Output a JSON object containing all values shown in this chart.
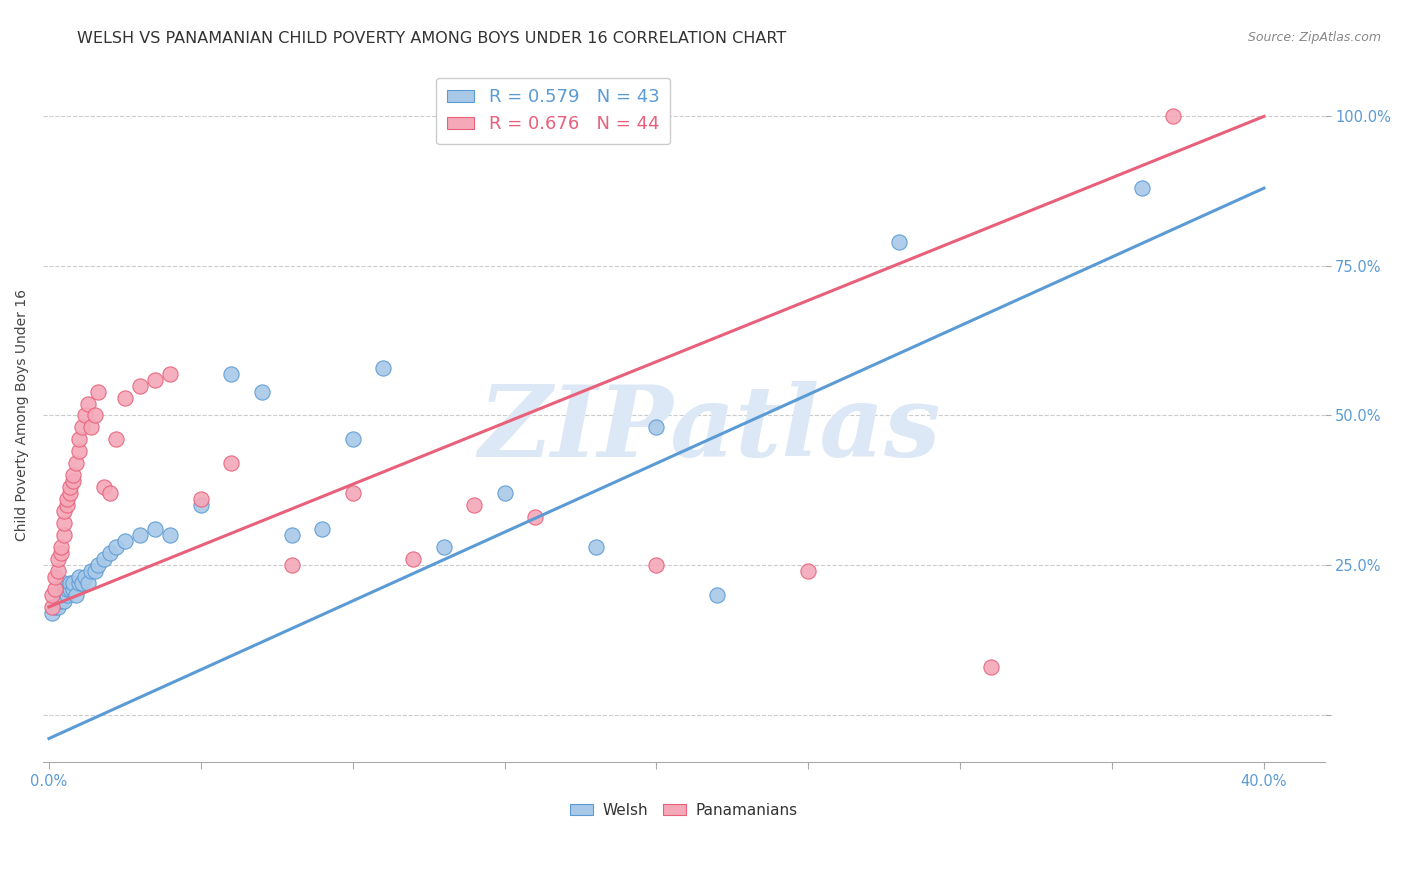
{
  "title": "WELSH VS PANAMANIAN CHILD POVERTY AMONG BOYS UNDER 16 CORRELATION CHART",
  "source": "Source: ZipAtlas.com",
  "ylabel": "Child Poverty Among Boys Under 16",
  "xlim": [
    -0.002,
    0.42
  ],
  "ylim": [
    -0.08,
    1.08
  ],
  "xticks": [
    0.0,
    0.05,
    0.1,
    0.15,
    0.2,
    0.25,
    0.3,
    0.35,
    0.4
  ],
  "yticks": [
    0.0,
    0.25,
    0.5,
    0.75,
    1.0
  ],
  "yticklabels": [
    "",
    "25.0%",
    "50.0%",
    "75.0%",
    "100.0%"
  ],
  "welsh_R": 0.579,
  "welsh_N": 43,
  "panam_R": 0.676,
  "panam_N": 44,
  "welsh_color": "#a8c8e8",
  "panam_color": "#f4a8b8",
  "welsh_edge_color": "#5b9bd5",
  "panam_edge_color": "#e8607a",
  "welsh_line_color": "#5b9bd5",
  "panam_line_color": "#e8607a",
  "watermark_color": "#dce8f5",
  "background_color": "#ffffff",
  "welsh_x": [
    0.001,
    0.002,
    0.003,
    0.004,
    0.004,
    0.005,
    0.005,
    0.006,
    0.006,
    0.007,
    0.007,
    0.008,
    0.008,
    0.009,
    0.01,
    0.01,
    0.011,
    0.012,
    0.013,
    0.014,
    0.015,
    0.016,
    0.018,
    0.02,
    0.022,
    0.025,
    0.03,
    0.035,
    0.04,
    0.05,
    0.06,
    0.07,
    0.08,
    0.09,
    0.1,
    0.11,
    0.13,
    0.15,
    0.18,
    0.2,
    0.22,
    0.28,
    0.36
  ],
  "welsh_y": [
    0.17,
    0.18,
    0.18,
    0.19,
    0.2,
    0.19,
    0.22,
    0.2,
    0.21,
    0.21,
    0.22,
    0.21,
    0.22,
    0.2,
    0.22,
    0.23,
    0.22,
    0.23,
    0.22,
    0.24,
    0.24,
    0.25,
    0.26,
    0.27,
    0.28,
    0.29,
    0.3,
    0.31,
    0.3,
    0.35,
    0.57,
    0.54,
    0.3,
    0.31,
    0.46,
    0.58,
    0.28,
    0.37,
    0.28,
    0.48,
    0.2,
    0.79,
    0.88
  ],
  "panam_x": [
    0.001,
    0.001,
    0.002,
    0.002,
    0.003,
    0.003,
    0.004,
    0.004,
    0.005,
    0.005,
    0.005,
    0.006,
    0.006,
    0.007,
    0.007,
    0.008,
    0.008,
    0.009,
    0.01,
    0.01,
    0.011,
    0.012,
    0.013,
    0.014,
    0.015,
    0.016,
    0.018,
    0.02,
    0.022,
    0.025,
    0.03,
    0.035,
    0.04,
    0.05,
    0.06,
    0.08,
    0.1,
    0.12,
    0.14,
    0.16,
    0.2,
    0.25,
    0.31,
    0.37
  ],
  "panam_y": [
    0.18,
    0.2,
    0.21,
    0.23,
    0.24,
    0.26,
    0.27,
    0.28,
    0.3,
    0.32,
    0.34,
    0.35,
    0.36,
    0.37,
    0.38,
    0.39,
    0.4,
    0.42,
    0.44,
    0.46,
    0.48,
    0.5,
    0.52,
    0.48,
    0.5,
    0.54,
    0.38,
    0.37,
    0.46,
    0.53,
    0.55,
    0.56,
    0.57,
    0.36,
    0.42,
    0.25,
    0.37,
    0.26,
    0.35,
    0.33,
    0.25,
    0.24,
    0.08,
    1.0
  ],
  "welsh_line_x": [
    0.0,
    0.4
  ],
  "welsh_line_y": [
    -0.04,
    0.88
  ],
  "panam_line_x": [
    0.0,
    0.4
  ],
  "panam_line_y": [
    0.18,
    1.0
  ],
  "marker_size": 120,
  "title_fontsize": 11.5,
  "label_fontsize": 10,
  "tick_fontsize": 10.5,
  "legend_fontsize": 13
}
